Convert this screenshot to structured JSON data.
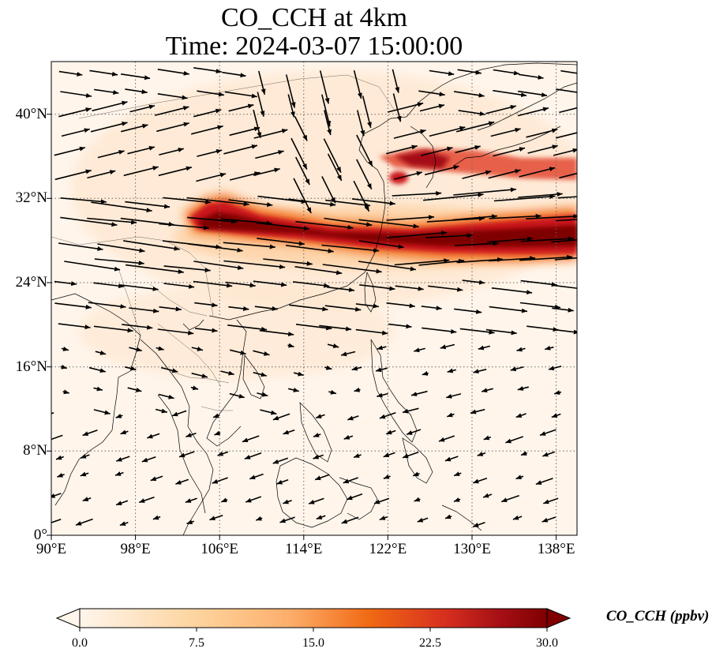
{
  "title": {
    "line1": "CO_CCH at 4km",
    "line2": "Time: 2024-03-07 15:00:00"
  },
  "map": {
    "lon_range": [
      90,
      140
    ],
    "lat_range": [
      0,
      45
    ],
    "x_ticks": [
      "90°E",
      "98°E",
      "106°E",
      "114°E",
      "122°E",
      "130°E",
      "138°E"
    ],
    "x_tick_values": [
      90,
      98,
      106,
      114,
      122,
      130,
      138
    ],
    "y_ticks": [
      "0°",
      "8°N",
      "16°N",
      "24°N",
      "32°N",
      "40°N"
    ],
    "y_tick_values": [
      0,
      8,
      16,
      24,
      32,
      40
    ],
    "gridlines": "dotted",
    "coastlines": true,
    "wind_vectors": true
  },
  "colorbar": {
    "label": "CO_CCH (ppbv)",
    "ticks": [
      "0.0",
      "7.5",
      "15.0",
      "22.5",
      "30.0"
    ],
    "tick_values": [
      0,
      7.5,
      15,
      22.5,
      30
    ],
    "range": [
      0,
      30
    ],
    "extend": "both",
    "colormap": [
      "#fff5eb",
      "#fdd49e",
      "#fdae6b",
      "#f16913",
      "#d94801",
      "#a50f15",
      "#7f0000"
    ]
  }
}
